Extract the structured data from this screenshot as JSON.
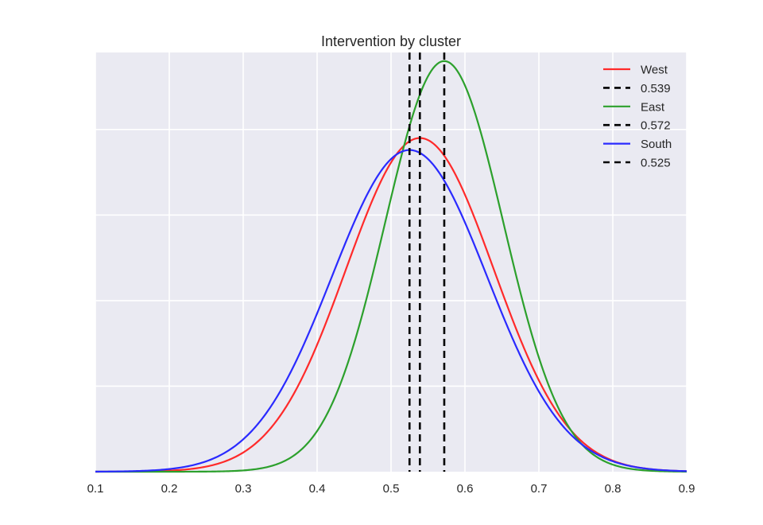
{
  "chart_data": {
    "type": "line",
    "title": "Intervention by cluster",
    "xlabel": "",
    "ylabel": "",
    "xlim": [
      0.1,
      0.9
    ],
    "ylim": [
      0,
      4.9
    ],
    "x_ticks": [
      "0.1",
      "0.2",
      "0.3",
      "0.4",
      "0.5",
      "0.6",
      "0.7",
      "0.8",
      "0.9"
    ],
    "y_gridlines": [
      1,
      2,
      3,
      4
    ],
    "y_tick_labels_visible": false,
    "grid": true,
    "background": "#eaeaf2",
    "grid_color": "#ffffff",
    "legend_placement": "top-right",
    "series": [
      {
        "name": "West",
        "kind": "density",
        "color": "#ff2a2a",
        "mean": 0.539,
        "sd": 0.1,
        "peak": 3.9
      },
      {
        "name": "East",
        "kind": "density",
        "color": "#2ca02c",
        "mean": 0.572,
        "sd": 0.08,
        "peak": 4.8
      },
      {
        "name": "South",
        "kind": "density",
        "color": "#2a2aff",
        "mean": 0.525,
        "sd": 0.105,
        "peak": 3.76
      }
    ],
    "vlines": [
      {
        "label": "0.539",
        "x": 0.539,
        "color": "#000000",
        "style": "dashed"
      },
      {
        "label": "0.572",
        "x": 0.572,
        "color": "#000000",
        "style": "dashed"
      },
      {
        "label": "0.525",
        "x": 0.525,
        "color": "#000000",
        "style": "dashed"
      }
    ],
    "legend": [
      {
        "label": "West",
        "color": "#ff2a2a",
        "style": "solid"
      },
      {
        "label": "0.539",
        "color": "#000000",
        "style": "dashed"
      },
      {
        "label": "East",
        "color": "#2ca02c",
        "style": "solid"
      },
      {
        "label": "0.572",
        "color": "#000000",
        "style": "dashed"
      },
      {
        "label": "South",
        "color": "#2a2aff",
        "style": "solid"
      },
      {
        "label": "0.525",
        "color": "#000000",
        "style": "dashed"
      }
    ]
  }
}
